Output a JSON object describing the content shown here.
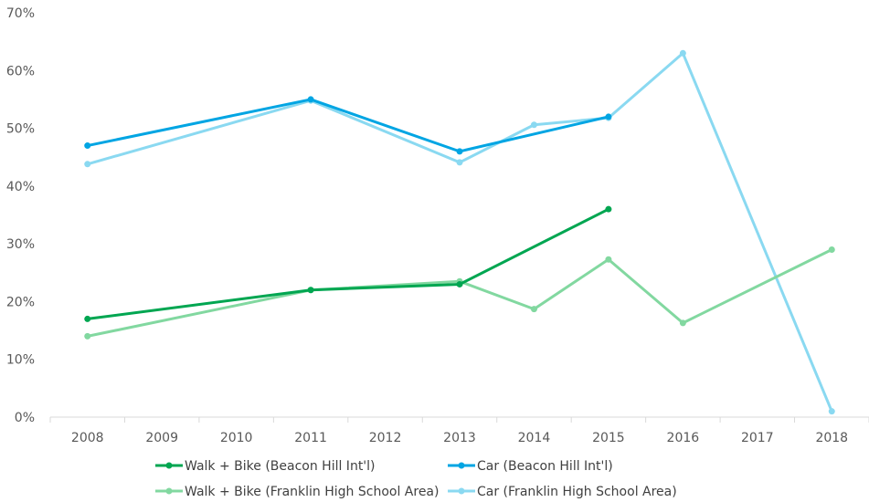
{
  "chart_data": {
    "type": "line",
    "x": [
      "2008",
      "2009",
      "2010",
      "2011",
      "2012",
      "2013",
      "2014",
      "2015",
      "2016",
      "2017",
      "2018"
    ],
    "y_ticks": [
      "0%",
      "10%",
      "20%",
      "30%",
      "40%",
      "50%",
      "60%",
      "70%"
    ],
    "ylim": [
      0,
      70
    ],
    "y_unit": "%",
    "grid": false,
    "legend_position": "bottom",
    "series": [
      {
        "name": "Walk + Bike (Beacon Hill Int'l)",
        "color": "#00a651",
        "points": [
          [
            0,
            17
          ],
          [
            3,
            22
          ],
          [
            5,
            23
          ],
          [
            7,
            36
          ]
        ]
      },
      {
        "name": "Car (Beacon Hill Int'l)",
        "color": "#00a5e3",
        "points": [
          [
            0,
            47
          ],
          [
            3,
            55
          ],
          [
            5,
            46
          ],
          [
            7,
            52
          ]
        ]
      },
      {
        "name": "Walk + Bike (Franklin High School Area)",
        "color": "#82d8a0",
        "points": [
          [
            0,
            14
          ],
          [
            3,
            22
          ],
          [
            5,
            23.5
          ],
          [
            6,
            18.7
          ],
          [
            7,
            27.3
          ],
          [
            8,
            16.3
          ],
          [
            10,
            29
          ]
        ]
      },
      {
        "name": "Car (Franklin High School Area)",
        "color": "#8ad9f1",
        "points": [
          [
            0,
            43.8
          ],
          [
            3,
            54.8
          ],
          [
            5,
            44.1
          ],
          [
            6,
            50.6
          ],
          [
            7,
            51.8
          ],
          [
            8,
            63
          ],
          [
            10,
            1
          ]
        ]
      }
    ]
  }
}
